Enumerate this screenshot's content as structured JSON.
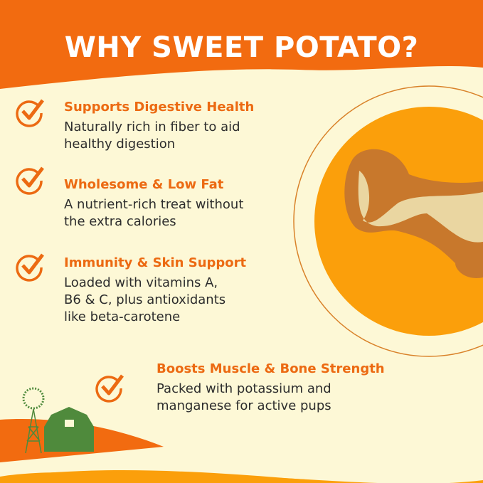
{
  "title": "WHY SWEET POTATO?",
  "colors": {
    "header": "#f26b10",
    "background": "#fdf8d6",
    "circle": "#fb9f0b",
    "accent_text": "#ec6a12",
    "barn": "#4f8a3c"
  },
  "features": [
    {
      "title": "Supports Digestive Health",
      "desc_lines": [
        "Naturally rich in fiber to aid",
        "healthy digestion"
      ],
      "icon": "check-circle-icon"
    },
    {
      "title": "Wholesome & Low Fat",
      "desc_lines": [
        "A nutrient-rich treat without",
        "the extra calories"
      ],
      "icon": "check-circle-icon"
    },
    {
      "title": "Immunity & Skin Support",
      "desc_lines": [
        "Loaded with vitamins A,",
        "B6 & C, plus antioxidants",
        "like beta-carotene"
      ],
      "icon": "check-circle-icon"
    },
    {
      "title": "Boosts Muscle & Bone Strength",
      "desc_lines": [
        "Packed with potassium and",
        "manganese for active pups"
      ],
      "icon": "check-circle-icon"
    }
  ],
  "images": {
    "product": "bone-shaped sweet potato treat",
    "farm": "windmill and barn"
  }
}
